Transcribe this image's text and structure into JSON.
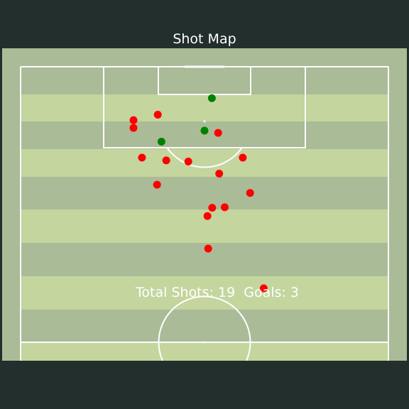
{
  "chart_data": {
    "type": "scatter",
    "title": "Shot Map",
    "annotations": {
      "total_shots_label": "Total Shots",
      "total_shots_value": 19,
      "goals_label": "Goals",
      "goals_value": 3
    },
    "grid": false,
    "legend": "none",
    "pitch": {
      "view": "vertical half pitch",
      "length_units": 100,
      "width_units": 100,
      "stripe_colors": [
        "#aabb97",
        "#c4d59e"
      ],
      "line_color": "#ffffff"
    },
    "series": [
      {
        "category": "goal",
        "color": "#008000",
        "points": [
          {
            "x": 52.0,
            "y": 94.3
          },
          {
            "x": 50.0,
            "y": 88.4
          },
          {
            "x": 38.3,
            "y": 86.4
          }
        ]
      },
      {
        "category": "no goal",
        "color": "#ff0000",
        "points": [
          {
            "x": 37.3,
            "y": 91.3
          },
          {
            "x": 30.7,
            "y": 90.3
          },
          {
            "x": 30.7,
            "y": 88.9
          },
          {
            "x": 53.7,
            "y": 88.0
          },
          {
            "x": 33.0,
            "y": 83.5
          },
          {
            "x": 39.6,
            "y": 83.0
          },
          {
            "x": 45.6,
            "y": 82.8
          },
          {
            "x": 60.4,
            "y": 83.5
          },
          {
            "x": 54.0,
            "y": 80.6
          },
          {
            "x": 37.1,
            "y": 78.6
          },
          {
            "x": 62.4,
            "y": 77.1
          },
          {
            "x": 52.1,
            "y": 74.4
          },
          {
            "x": 55.5,
            "y": 74.5
          },
          {
            "x": 50.8,
            "y": 72.9
          },
          {
            "x": 51.0,
            "y": 67.0
          },
          {
            "x": 66.1,
            "y": 59.8
          }
        ]
      }
    ]
  }
}
